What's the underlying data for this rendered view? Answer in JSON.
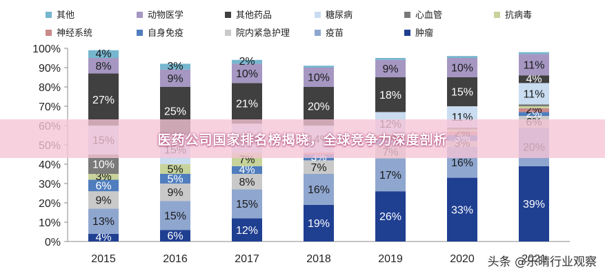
{
  "chart_data": {
    "type": "bar",
    "stacked": true,
    "categories": [
      "2015",
      "2016",
      "2017",
      "2018",
      "2019",
      "2020",
      "2021"
    ],
    "ylim": [
      0,
      100
    ],
    "yticks": [
      "0%",
      "10%",
      "20%",
      "30%",
      "40%",
      "50%",
      "60%",
      "70%",
      "80%",
      "90%",
      "100%"
    ],
    "legend_position": "top",
    "series": [
      {
        "name": "肿瘤",
        "color": "#1f3f91",
        "label_color": "#ffffff",
        "values": [
          4,
          6,
          12,
          19,
          26,
          33,
          39
        ]
      },
      {
        "name": "疫苗",
        "color": "#8fa6cf",
        "label_color": "#1a1a1a",
        "values": [
          13,
          15,
          15,
          16,
          17,
          16,
          20
        ]
      },
      {
        "name": "院内紧急护理",
        "color": "#c9c9c9",
        "label_color": "#1a1a1a",
        "values": [
          9,
          9,
          8,
          7,
          7,
          3,
          6
        ]
      },
      {
        "name": "自身免疫",
        "color": "#4f7dbd",
        "label_color": "#ffffff",
        "values": [
          6,
          5,
          4,
          3,
          3,
          3,
          2
        ]
      },
      {
        "name": "神经系统",
        "color": "#c98a8a",
        "label_color": "#1a1a1a",
        "values": [
          0,
          0,
          0,
          1,
          2,
          2,
          2
        ]
      },
      {
        "name": "抗病毒",
        "color": "#c7d39a",
        "label_color": "#1a1a1a",
        "values": [
          3,
          5,
          7,
          0,
          0,
          1,
          1
        ]
      },
      {
        "name": "心血管",
        "color": "#7a7a7a",
        "label_color": "#ffffff",
        "values": [
          10,
          0,
          0,
          0,
          0,
          1,
          1
        ]
      },
      {
        "name": "糖尿病",
        "color": "#c9dcf0",
        "label_color": "#1a1a1a",
        "values": [
          15,
          15,
          15,
          14,
          12,
          11,
          11
        ]
      },
      {
        "name": "其他药品",
        "color": "#404040",
        "label_color": "#ffffff",
        "values": [
          27,
          25,
          21,
          20,
          18,
          15,
          4
        ]
      },
      {
        "name": "动物医学",
        "color": "#a597c2",
        "label_color": "#1a1a1a",
        "values": [
          8,
          9,
          10,
          10,
          9,
          10,
          11
        ]
      },
      {
        "name": "其他",
        "color": "#76b6cf",
        "label_color": "#1a1a1a",
        "values": [
          4,
          3,
          2,
          1,
          1,
          1,
          1
        ]
      }
    ],
    "legend_order": [
      "其他",
      "动物医学",
      "其他药品",
      "糖尿病",
      "心血管",
      "抗病毒",
      "神经系统",
      "自身免疫",
      "院内紧急护理",
      "疫苗",
      "肿瘤"
    ],
    "grid": false
  },
  "banner": {
    "title": "医药公司国家排名榜揭晓，全球竞争力深度剖析"
  },
  "watermark": {
    "text": "头条 @乐晴行业观察"
  }
}
